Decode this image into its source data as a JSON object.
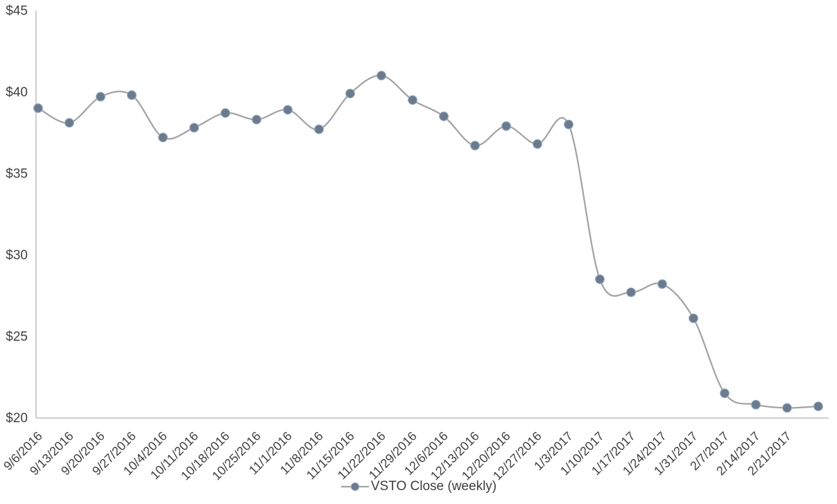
{
  "chart_data": {
    "type": "line",
    "title": "",
    "smoothed": true,
    "grid": false,
    "legend_position": "bottom-center",
    "series": [
      {
        "name": "VSTO Close (weekly)",
        "values": [
          39.0,
          38.1,
          39.7,
          39.8,
          37.2,
          37.8,
          38.7,
          38.3,
          38.9,
          37.7,
          39.9,
          41.0,
          39.5,
          38.5,
          36.7,
          37.9,
          36.8,
          38.0,
          28.5,
          27.7,
          28.2,
          26.1,
          21.5,
          20.8,
          20.6,
          20.7
        ]
      }
    ],
    "categories": [
      "9/6/2016",
      "9/13/2016",
      "9/20/2016",
      "9/27/2016",
      "10/4/2016",
      "10/11/2016",
      "10/18/2016",
      "10/25/2016",
      "11/1/2016",
      "11/8/2016",
      "11/15/2016",
      "11/22/2016",
      "11/29/2016",
      "12/6/2016",
      "12/13/2016",
      "12/20/2016",
      "12/27/2016",
      "1/3/2017",
      "1/10/2017",
      "1/17/2017",
      "1/24/2017",
      "1/31/2017",
      "2/7/2017",
      "2/14/2017",
      "2/21/2017",
      ""
    ],
    "xlabel": "",
    "ylabel": "",
    "ylim": [
      20,
      45
    ],
    "y_tick_step": 5,
    "y_tick_labels": [
      "$20",
      "$25",
      "$30",
      "$35",
      "$40",
      "$45"
    ],
    "colors": {
      "line": "#a3a3a3",
      "marker_fill": "#6b7a8d",
      "marker_stroke": "#8fa5bd",
      "axis_line": "#9e9e9e",
      "tick_text": "#404040"
    }
  }
}
